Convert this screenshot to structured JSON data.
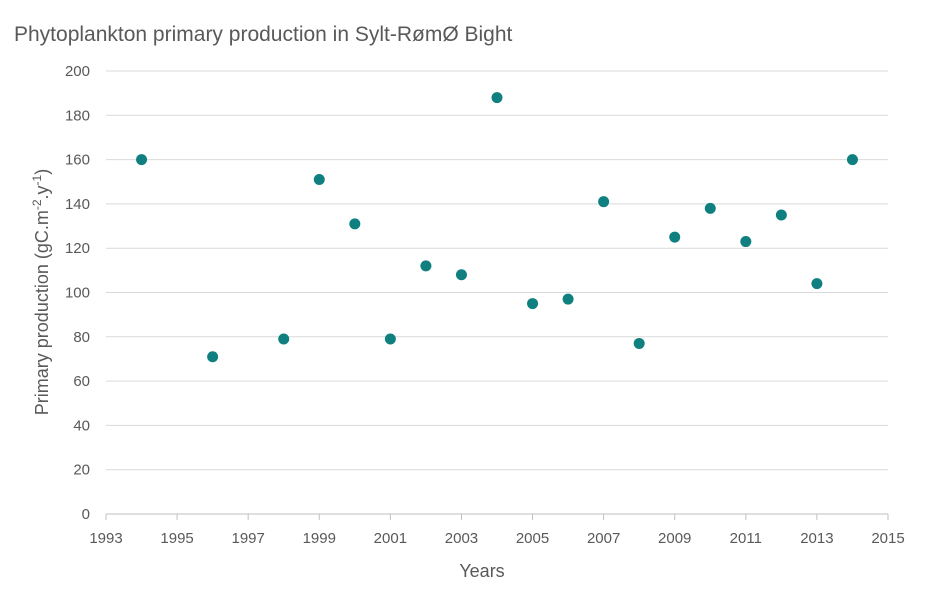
{
  "chart_data": {
    "type": "scatter",
    "title": "Phytoplankton primary production in Sylt-RømØ Bight",
    "xlabel": "Years",
    "ylabel_base": "Primary production (gC.m",
    "ylabel_sup1": "-2",
    "ylabel_mid": ".y",
    "ylabel_sup2": "-1",
    "ylabel_end": ")",
    "xlim": [
      1993,
      2015
    ],
    "ylim": [
      0,
      200
    ],
    "x_ticks": [
      "1993",
      "1995",
      "1997",
      "1999",
      "2001",
      "2003",
      "2005",
      "2007",
      "2009",
      "2011",
      "2013",
      "2015"
    ],
    "y_ticks": [
      "0",
      "20",
      "40",
      "60",
      "80",
      "100",
      "120",
      "140",
      "160",
      "180",
      "200"
    ],
    "grid": true,
    "marker_color": "#0f7f7f",
    "series": [
      {
        "name": "Primary production",
        "x": [
          1994,
          1996,
          1998,
          1999,
          2000,
          2001,
          2002,
          2003,
          2004,
          2005,
          2006,
          2007,
          2008,
          2009,
          2010,
          2011,
          2012,
          2013,
          2014
        ],
        "y": [
          160,
          71,
          79,
          151,
          131,
          79,
          112,
          108,
          188,
          95,
          97,
          141,
          77,
          125,
          138,
          123,
          135,
          104,
          160
        ]
      }
    ]
  }
}
